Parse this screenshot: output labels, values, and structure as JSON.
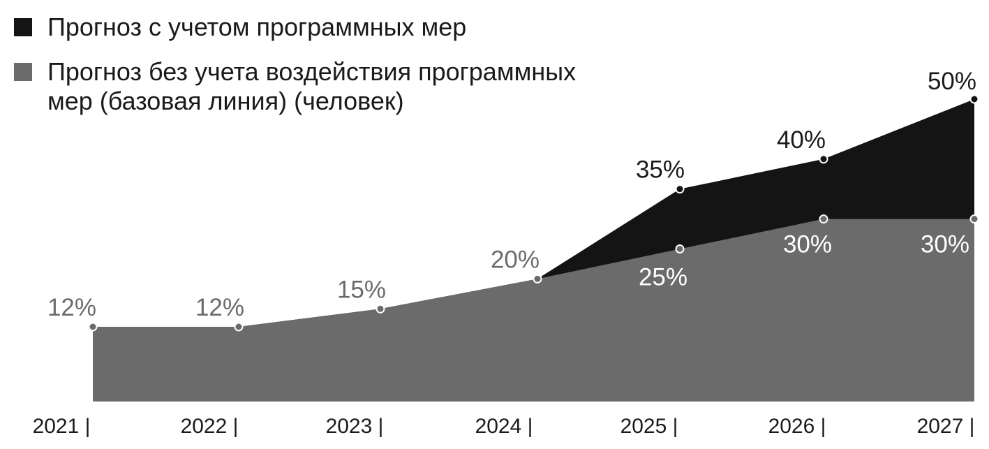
{
  "colors": {
    "programme": "#141414",
    "baseline": "#6b6b6b",
    "baseline_label": "#6b6b6b",
    "inside_label": "#ffffff",
    "programme_label": "#1a1a1a"
  },
  "chart_data": {
    "type": "area",
    "categories": [
      "2021",
      "2022",
      "2023",
      "2024",
      "2025",
      "2026",
      "2027"
    ],
    "tick_labels": [
      "2021  |",
      "2022 |",
      "2023 |",
      "2024 |",
      "2025 |",
      "2026 |",
      "2027 |"
    ],
    "ylim": [
      0,
      50
    ],
    "grid": false,
    "legend_position": "top-left",
    "series": [
      {
        "name": "Прогноз с учетом программных мер",
        "values": [
          12,
          12,
          15,
          20,
          35,
          40,
          50
        ],
        "labels": [
          "",
          "",
          "",
          "",
          "35%",
          "40%",
          "50%"
        ],
        "color": "#141414"
      },
      {
        "name": "Прогноз без учета воздействия программных мер (базовая линия) (человек)",
        "values": [
          12,
          12,
          15,
          20,
          25,
          30,
          30
        ],
        "labels": [
          "12%",
          "12%",
          "15%",
          "20%",
          "25%",
          "30%",
          "30%"
        ],
        "color": "#6b6b6b"
      }
    ]
  }
}
